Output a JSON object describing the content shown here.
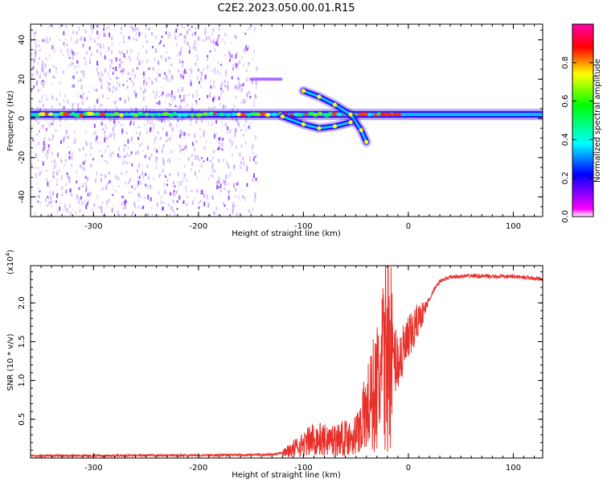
{
  "title": "C2E2.2023.050.00.01.R15",
  "colors": {
    "snr_line": "#e8302a",
    "band_core": "#00c8ff",
    "band_edge": "#3300ff",
    "speckle": "#7a1fff"
  },
  "chart_data": [
    {
      "type": "heatmap",
      "name": "spectrogram",
      "xlabel": "Height of straight line (km)",
      "ylabel": "Frequency (Hz)",
      "xlim": [
        -360,
        128
      ],
      "ylim": [
        -50,
        48
      ],
      "x_ticks": [
        -300,
        -200,
        -100,
        0,
        100
      ],
      "y_ticks": [
        -40,
        -20,
        0,
        20,
        40
      ],
      "grid": false,
      "colorbar": {
        "label": "Normalized spectral amplitude",
        "range": [
          0,
          1
        ],
        "ticks": [
          "0.0",
          "0.2",
          "0.4",
          "0.6",
          "0.8"
        ],
        "tick_values": [
          0.0,
          0.2,
          0.4,
          0.6,
          0.8
        ],
        "colormap": [
          "#ffffff",
          "#ff00ff",
          "#8800ff",
          "#0000ff",
          "#00ffff",
          "#00ff00",
          "#ffff00",
          "#ff0000",
          "#ff00aa"
        ]
      },
      "features": {
        "carrier_band": {
          "frequency_hz": 2,
          "from_km": -360,
          "to_km": 128
        },
        "speckle_region": {
          "from_km": -360,
          "to_km": -145,
          "freq_range_hz": [
            -50,
            48
          ]
        },
        "upper_branch": [
          [
            -100,
            14
          ],
          [
            -85,
            11
          ],
          [
            -70,
            7
          ],
          [
            -55,
            2
          ],
          [
            -45,
            -6
          ],
          [
            -40,
            -12
          ]
        ],
        "lower_branch": [
          [
            -120,
            1
          ],
          [
            -100,
            -3
          ],
          [
            -85,
            -5
          ],
          [
            -70,
            -4
          ],
          [
            -55,
            -2
          ]
        ],
        "side_tone": {
          "frequency_hz": 20,
          "from_km": -150,
          "to_km": -120
        }
      }
    },
    {
      "type": "line",
      "name": "snr",
      "xlabel": "Height of straight line (km)",
      "ylabel": "SNR (10 * v/v)",
      "multiplier": "(x10",
      "multiplier_exp": "4",
      "multiplier_close": ")",
      "xlim": [
        -360,
        128
      ],
      "ylim": [
        0,
        24800
      ],
      "x_ticks": [
        -300,
        -200,
        -100,
        0,
        100
      ],
      "y_ticks": [
        "0.5",
        "1.0",
        "1.5",
        "2.0"
      ],
      "y_tick_values": [
        5000,
        10000,
        15000,
        20000
      ],
      "grid": false,
      "series": [
        {
          "x": [
            -360,
            -300,
            -200,
            -130,
            -115,
            -100,
            -90,
            -80,
            -70,
            -60,
            -50,
            -45,
            -40,
            -35,
            -30,
            -25,
            -22,
            -20,
            -18,
            -15,
            -10,
            -5,
            0,
            5,
            10,
            15,
            20,
            25,
            30,
            40,
            60,
            80,
            100,
            120,
            128
          ],
          "y": [
            300,
            300,
            350,
            450,
            900,
            1800,
            2500,
            2300,
            2400,
            2600,
            3000,
            4500,
            6000,
            7500,
            9000,
            11000,
            14000,
            16000,
            14000,
            13000,
            12500,
            13500,
            15000,
            16500,
            18000,
            19000,
            20500,
            21800,
            22800,
            23300,
            23500,
            23400,
            23400,
            23200,
            23000
          ]
        }
      ]
    }
  ]
}
